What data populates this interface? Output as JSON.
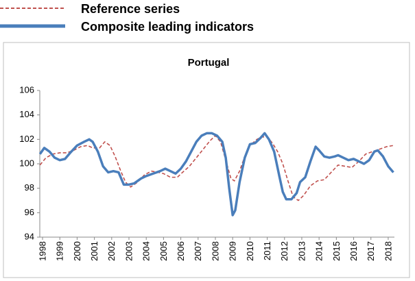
{
  "chart_data": {
    "type": "line",
    "title": "Portugal",
    "legend": "top",
    "series": [
      {
        "name": "Reference series",
        "color": "#c0504d",
        "dash": true,
        "x": [
          1997.85,
          1998.2,
          1998.6,
          1999.0,
          1999.4,
          1999.8,
          2000.2,
          2000.6,
          2000.9,
          2001.3,
          2001.6,
          2001.9,
          2002.2,
          2002.5,
          2002.8,
          2003.1,
          2003.5,
          2003.9,
          2004.3,
          2004.7,
          2005.0,
          2005.4,
          2005.8,
          2006.1,
          2006.5,
          2006.9,
          2007.3,
          2007.7,
          2008.0,
          2008.3,
          2008.6,
          2008.9,
          2009.1,
          2009.4,
          2009.7,
          2010.0,
          2010.4,
          2010.7,
          2011.0,
          2011.3,
          2011.6,
          2011.9,
          2012.2,
          2012.5,
          2012.8,
          2013.1,
          2013.5,
          2013.9,
          2014.3,
          2014.7,
          2015.1,
          2015.5,
          2015.9,
          2016.3,
          2016.7,
          2017.1,
          2017.5,
          2017.9,
          2018.3
        ],
        "values": [
          99.9,
          100.5,
          100.8,
          100.9,
          100.9,
          101.1,
          101.4,
          101.5,
          101.3,
          101.3,
          101.8,
          101.5,
          100.6,
          99.5,
          98.5,
          98.1,
          98.5,
          99.1,
          99.4,
          99.3,
          99.2,
          98.9,
          98.9,
          99.3,
          99.8,
          100.5,
          101.2,
          101.9,
          102.3,
          101.8,
          100.3,
          98.8,
          98.6,
          99.4,
          100.6,
          101.5,
          102.0,
          102.2,
          102.2,
          101.7,
          101.0,
          100.0,
          98.6,
          97.3,
          97.0,
          97.4,
          98.2,
          98.6,
          98.7,
          99.3,
          99.9,
          99.8,
          99.7,
          100.2,
          100.8,
          101.0,
          101.2,
          101.4,
          101.5
        ]
      },
      {
        "name": "Composite leading indicators",
        "color": "#4a7ebb",
        "dash": false,
        "x": [
          1997.85,
          1998.1,
          1998.4,
          1998.7,
          1999.0,
          1999.3,
          1999.6,
          2000.0,
          2000.4,
          2000.7,
          2000.9,
          2001.2,
          2001.5,
          2001.8,
          2002.1,
          2002.4,
          2002.7,
          2003.0,
          2003.3,
          2003.7,
          2004.0,
          2004.4,
          2004.8,
          2005.1,
          2005.4,
          2005.7,
          2006.0,
          2006.3,
          2006.6,
          2006.9,
          2007.2,
          2007.5,
          2007.8,
          2008.1,
          2008.4,
          2008.6,
          2008.8,
          2009.0,
          2009.15,
          2009.4,
          2009.7,
          2010.0,
          2010.3,
          2010.6,
          2010.85,
          2011.1,
          2011.4,
          2011.7,
          2011.9,
          2012.1,
          2012.4,
          2012.7,
          2012.9,
          2013.2,
          2013.5,
          2013.8,
          2014.0,
          2014.3,
          2014.6,
          2014.9,
          2015.1,
          2015.4,
          2015.7,
          2016.0,
          2016.3,
          2016.6,
          2016.9,
          2017.2,
          2017.4,
          2017.7,
          2018.0,
          2018.3
        ],
        "values": [
          100.8,
          101.3,
          101.0,
          100.5,
          100.3,
          100.4,
          100.9,
          101.5,
          101.8,
          102.0,
          101.8,
          101.0,
          99.8,
          99.3,
          99.4,
          99.3,
          98.3,
          98.3,
          98.4,
          98.8,
          99.0,
          99.2,
          99.4,
          99.6,
          99.4,
          99.2,
          99.6,
          100.2,
          101.0,
          101.8,
          102.3,
          102.5,
          102.5,
          102.3,
          101.8,
          100.5,
          98.0,
          95.8,
          96.2,
          98.5,
          100.5,
          101.6,
          101.7,
          102.1,
          102.5,
          102.0,
          101.0,
          99.0,
          97.7,
          97.1,
          97.1,
          97.6,
          98.5,
          98.9,
          100.2,
          101.4,
          101.1,
          100.6,
          100.5,
          100.6,
          100.7,
          100.5,
          100.3,
          100.4,
          100.2,
          100.0,
          100.3,
          101.0,
          101.1,
          100.6,
          99.8,
          99.3
        ]
      }
    ],
    "xlim": [
      1997.84,
      2018.36
    ],
    "xticks": [
      1998,
      1999,
      2000,
      2001,
      2002,
      2003,
      2004,
      2005,
      2006,
      2007,
      2008,
      2009,
      2010,
      2011,
      2012,
      2013,
      2014,
      2015,
      2016,
      2017,
      2018
    ],
    "ylim": [
      94,
      106
    ],
    "yticks": [
      94,
      96,
      98,
      100,
      102,
      104,
      106
    ]
  }
}
